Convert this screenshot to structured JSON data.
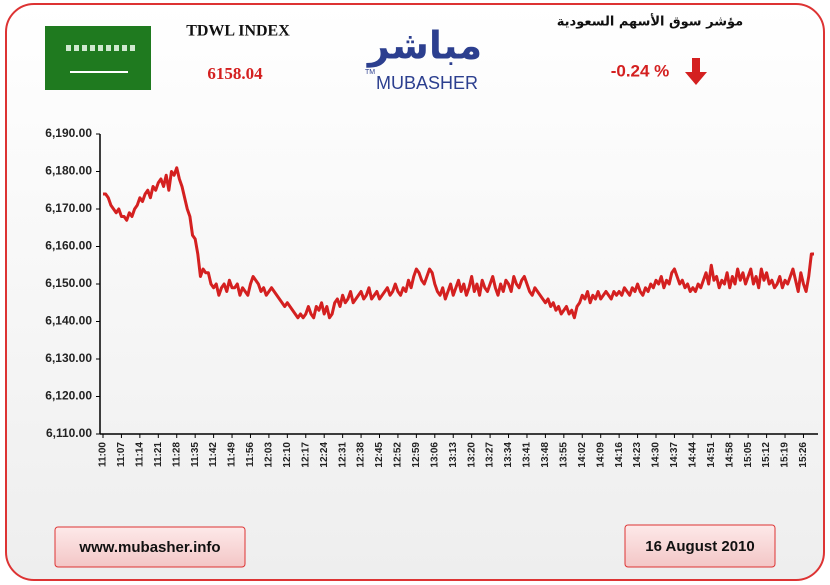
{
  "header": {
    "title": "TDWL INDEX",
    "value": "6158.04",
    "arabic_title": "مؤشر سوق الأسهم السعودية",
    "change": "-0.24 %",
    "logo_arabic": "مباشر",
    "logo_latin": "MUBASHER",
    "logo_tm": "TM"
  },
  "footer": {
    "website": "www.mubasher.info",
    "date": "16 August 2010"
  },
  "chart_data": {
    "type": "line",
    "color": "#d42020",
    "ylim": [
      6110,
      6190
    ],
    "yticks": [
      {
        "value": 6110,
        "label": "6,110.00"
      },
      {
        "value": 6120,
        "label": "6,120.00"
      },
      {
        "value": 6130,
        "label": "6,130.00"
      },
      {
        "value": 6140,
        "label": "6,140.00"
      },
      {
        "value": 6150,
        "label": "6,150.00"
      },
      {
        "value": 6160,
        "label": "6,160.00"
      },
      {
        "value": 6170,
        "label": "6,170.00"
      },
      {
        "value": 6180,
        "label": "6,180.00"
      },
      {
        "value": 6190,
        "label": "6,190.00"
      }
    ],
    "categories": [
      "11:00",
      null,
      null,
      null,
      null,
      null,
      null,
      "11:07",
      null,
      null,
      null,
      null,
      null,
      null,
      "11:14",
      null,
      null,
      null,
      null,
      null,
      null,
      "11:21",
      null,
      null,
      null,
      null,
      null,
      null,
      "11:28",
      null,
      null,
      null,
      null,
      null,
      null,
      "11:35",
      null,
      null,
      null,
      null,
      null,
      null,
      "11:42",
      null,
      null,
      null,
      null,
      null,
      null,
      "11:49",
      null,
      null,
      null,
      null,
      null,
      null,
      "11:56",
      null,
      null,
      null,
      null,
      null,
      null,
      "12:03",
      null,
      null,
      null,
      null,
      null,
      null,
      "12:10",
      null,
      null,
      null,
      null,
      null,
      null,
      "12:17",
      null,
      null,
      null,
      null,
      null,
      null,
      "12:24",
      null,
      null,
      null,
      null,
      null,
      null,
      "12:31",
      null,
      null,
      null,
      null,
      null,
      null,
      "12:38",
      null,
      null,
      null,
      null,
      null,
      null,
      "12:45",
      null,
      null,
      null,
      null,
      null,
      null,
      "12:52",
      null,
      null,
      null,
      null,
      null,
      null,
      "12:59",
      null,
      null,
      null,
      null,
      null,
      null,
      "13:06",
      null,
      null,
      null,
      null,
      null,
      null,
      "13:13",
      null,
      null,
      null,
      null,
      null,
      null,
      "13:20",
      null,
      null,
      null,
      null,
      null,
      null,
      "13:27",
      null,
      null,
      null,
      null,
      null,
      null,
      "13:34",
      null,
      null,
      null,
      null,
      null,
      null,
      "13:41",
      null,
      null,
      null,
      null,
      null,
      null,
      "13:48",
      null,
      null,
      null,
      null,
      null,
      null,
      "13:55",
      null,
      null,
      null,
      null,
      null,
      null,
      "14:02",
      null,
      null,
      null,
      null,
      null,
      null,
      "14:09",
      null,
      null,
      null,
      null,
      null,
      null,
      "14:16",
      null,
      null,
      null,
      null,
      null,
      null,
      "14:23",
      null,
      null,
      null,
      null,
      null,
      null,
      "14:30",
      null,
      null,
      null,
      null,
      null,
      null,
      "14:37",
      null,
      null,
      null,
      null,
      null,
      null,
      "14:44",
      null,
      null,
      null,
      null,
      null,
      null,
      "14:51",
      null,
      null,
      null,
      null,
      null,
      null,
      "14:58",
      null,
      null,
      null,
      null,
      null,
      null,
      "15:05",
      null,
      null,
      null,
      null,
      null,
      null,
      "15:12",
      null,
      null,
      null,
      null,
      null,
      null,
      "15:19",
      null,
      null,
      null,
      null,
      null,
      null,
      "15:26",
      null,
      null,
      null,
      null
    ],
    "values": [
      6174,
      6174,
      6173,
      6171,
      6170,
      6169,
      6170,
      6168,
      6168,
      6167,
      6169,
      6168,
      6170,
      6171,
      6173,
      6172,
      6174,
      6175,
      6173,
      6176,
      6175,
      6177,
      6178,
      6176,
      6179,
      6175,
      6180,
      6179,
      6181,
      6178,
      6176,
      6173,
      6170,
      6168,
      6163,
      6162,
      6158,
      6152,
      6154,
      6153,
      6153,
      6150,
      6149,
      6150,
      6147,
      6149,
      6150,
      6148,
      6151,
      6149,
      6149,
      6150,
      6147,
      6149,
      6148,
      6147,
      6150,
      6152,
      6151,
      6150,
      6148,
      6149,
      6147,
      6148,
      6149,
      6148,
      6147,
      6146,
      6145,
      6144,
      6145,
      6144,
      6143,
      6142,
      6141,
      6142,
      6141,
      6142,
      6144,
      6142,
      6141,
      6144,
      6143,
      6145,
      6142,
      6144,
      6141,
      6142,
      6145,
      6146,
      6144,
      6147,
      6145,
      6146,
      6148,
      6145,
      6146,
      6147,
      6148,
      6146,
      6147,
      6149,
      6146,
      6147,
      6148,
      6146,
      6147,
      6148,
      6149,
      6147,
      6148,
      6150,
      6148,
      6147,
      6149,
      6148,
      6151,
      6149,
      6152,
      6154,
      6153,
      6151,
      6150,
      6152,
      6154,
      6153,
      6150,
      6148,
      6147,
      6149,
      6146,
      6148,
      6150,
      6147,
      6149,
      6151,
      6148,
      6150,
      6147,
      6149,
      6152,
      6148,
      6150,
      6147,
      6151,
      6149,
      6148,
      6150,
      6152,
      6149,
      6147,
      6150,
      6148,
      6151,
      6150,
      6148,
      6152,
      6150,
      6149,
      6151,
      6152,
      6150,
      6148,
      6147,
      6149,
      6148,
      6147,
      6146,
      6145,
      6146,
      6144,
      6145,
      6143,
      6144,
      6142,
      6143,
      6144,
      6142,
      6143,
      6141,
      6144,
      6145,
      6147,
      6146,
      6148,
      6145,
      6147,
      6146,
      6148,
      6146,
      6147,
      6148,
      6147,
      6146,
      6148,
      6147,
      6148,
      6147,
      6149,
      6148,
      6147,
      6149,
      6148,
      6150,
      6148,
      6147,
      6149,
      6148,
      6150,
      6149,
      6151,
      6150,
      6152,
      6149,
      6151,
      6150,
      6153,
      6154,
      6152,
      6150,
      6151,
      6149,
      6150,
      6148,
      6149,
      6148,
      6150,
      6149,
      6151,
      6153,
      6150,
      6155,
      6151,
      6152,
      6149,
      6151,
      6150,
      6153,
      6149,
      6152,
      6150,
      6154,
      6151,
      6153,
      6150,
      6152,
      6154,
      6150,
      6152,
      6149,
      6154,
      6151,
      6153,
      6150,
      6151,
      6149,
      6150,
      6152,
      6149,
      6151,
      6150,
      6152,
      6154,
      6151,
      6148,
      6153,
      6150,
      6148,
      6152,
      6158,
      6158
    ]
  }
}
